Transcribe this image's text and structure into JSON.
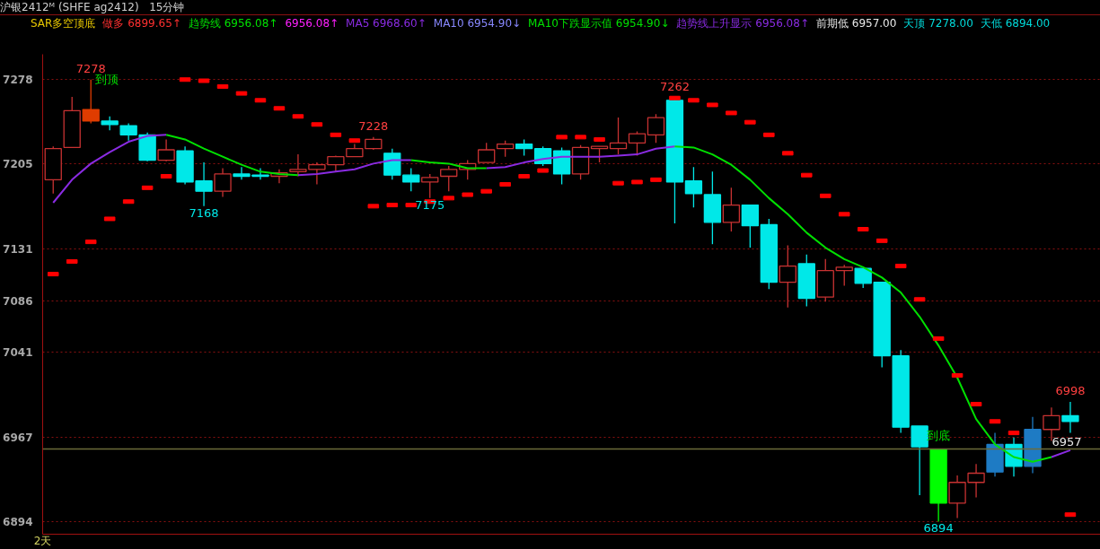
{
  "chart_data": {
    "type": "candlestick",
    "title": "沪银2412ᴹ (SHFE ag2412)",
    "subtitle": "15分钟",
    "xlabel": "2天",
    "categories": [
      null,
      null,
      null,
      null,
      null,
      null,
      null,
      null,
      null,
      null,
      null,
      null,
      null,
      null,
      null,
      null,
      null,
      null,
      null,
      null,
      null,
      null,
      null,
      null,
      null,
      null,
      null,
      null,
      null,
      null,
      null,
      null,
      null,
      null,
      null,
      null,
      null,
      null,
      null,
      null,
      null,
      null,
      null,
      null,
      null,
      null,
      null,
      null,
      null,
      null,
      null,
      null,
      null,
      null,
      null
    ],
    "ohlc": [
      [
        7191,
        7220,
        7179,
        7218
      ],
      [
        7219,
        7263,
        7219,
        7251
      ],
      [
        7252,
        7278,
        7240,
        7242
      ],
      [
        7242,
        7246,
        7234,
        7239
      ],
      [
        7238,
        7240,
        7225,
        7230
      ],
      [
        7230,
        7232,
        7207,
        7208
      ],
      [
        7208,
        7226,
        7207,
        7217
      ],
      [
        7216,
        7220,
        7187,
        7189
      ],
      [
        7190,
        7206,
        7168,
        7181
      ],
      [
        7181,
        7201,
        7176,
        7196
      ],
      [
        7196,
        7202,
        7191,
        7194
      ],
      [
        7195,
        7201,
        7191,
        7194
      ],
      [
        7194,
        7200,
        7188,
        7197
      ],
      [
        7198,
        7213,
        7194,
        7200
      ],
      [
        7200,
        7206,
        7187,
        7204
      ],
      [
        7204,
        7212,
        7198,
        7211
      ],
      [
        7211,
        7222,
        7211,
        7218
      ],
      [
        7218,
        7228,
        7217,
        7226
      ],
      [
        7214,
        7218,
        7191,
        7195
      ],
      [
        7195,
        7201,
        7181,
        7189
      ],
      [
        7189,
        7196,
        7175,
        7193
      ],
      [
        7194,
        7203,
        7181,
        7200
      ],
      [
        7200,
        7208,
        7191,
        7205
      ],
      [
        7206,
        7223,
        7206,
        7217
      ],
      [
        7218,
        7225,
        7211,
        7222
      ],
      [
        7222,
        7226,
        7212,
        7218
      ],
      [
        7218,
        7220,
        7203,
        7205
      ],
      [
        7216,
        7219,
        7187,
        7196
      ],
      [
        7196,
        7221,
        7191,
        7219
      ],
      [
        7218,
        7220,
        7206,
        7220
      ],
      [
        7218,
        7245,
        7213,
        7223
      ],
      [
        7223,
        7233,
        7212,
        7231
      ],
      [
        7230,
        7248,
        7223,
        7245
      ],
      [
        7260,
        7262,
        7153,
        7189
      ],
      [
        7190,
        7202,
        7167,
        7179
      ],
      [
        7178,
        7198,
        7135,
        7154
      ],
      [
        7154,
        7184,
        7146,
        7169
      ],
      [
        7169,
        7169,
        7132,
        7151
      ],
      [
        7152,
        7157,
        7096,
        7102
      ],
      [
        7102,
        7134,
        7080,
        7116
      ],
      [
        7118,
        7126,
        7081,
        7088
      ],
      [
        7089,
        7122,
        7085,
        7112
      ],
      [
        7112,
        7117,
        7099,
        7115
      ],
      [
        7114,
        7114,
        7097,
        7101
      ],
      [
        7102,
        7102,
        7028,
        7038
      ],
      [
        7038,
        7043,
        6971,
        6976
      ],
      [
        6977,
        6977,
        6917,
        6959
      ],
      [
        6957,
        6957,
        6894,
        6910
      ],
      [
        6910,
        6934,
        6897,
        6928
      ],
      [
        6928,
        6944,
        6915,
        6936
      ],
      [
        6961,
        6971,
        6933,
        6937
      ],
      [
        6961,
        6967,
        6933,
        6942
      ],
      [
        6974,
        6985,
        6936,
        6942
      ],
      [
        6974,
        6993,
        6964,
        6986
      ],
      [
        6986,
        6998,
        6971,
        6981
      ]
    ],
    "colors": [
      "#c83232",
      "#c83232",
      "#e03c00",
      "#00e8e8",
      "#00e8e8",
      "#00e8e8",
      "#c83232",
      "#00e8e8",
      "#00e8e8",
      "#c83232",
      "#00e8e8",
      "#00e8e8",
      "#c83232",
      "#c83232",
      "#c83232",
      "#c83232",
      "#c83232",
      "#c83232",
      "#00e8e8",
      "#00e8e8",
      "#c83232",
      "#c83232",
      "#c83232",
      "#c83232",
      "#c83232",
      "#00e8e8",
      "#00e8e8",
      "#00e8e8",
      "#c83232",
      "#c83232",
      "#c83232",
      "#c83232",
      "#c83232",
      "#00e8e8",
      "#00e8e8",
      "#00e8e8",
      "#c83232",
      "#00e8e8",
      "#00e8e8",
      "#c83232",
      "#00e8e8",
      "#c83232",
      "#c83232",
      "#00e8e8",
      "#00e8e8",
      "#00e8e8",
      "#00e8e8",
      "#00ff00",
      "#c83232",
      "#c83232",
      "#1e7bc4",
      "#00e8e8",
      "#1e7bc4",
      "#c83232",
      "#00e8e8"
    ],
    "series": [
      {
        "type": "line",
        "color": "#8a2be2",
        "values": [
          7171,
          7191,
          7205,
          7215,
          7224,
          7229,
          7230,
          null,
          null,
          null,
          null,
          null,
          null,
          7195,
          7196,
          7198,
          7200,
          7205,
          7208,
          7208,
          null,
          null,
          null,
          7201,
          7202,
          7206,
          7209,
          7211,
          7211,
          7211,
          7212,
          7213,
          7218,
          7220,
          null,
          null,
          null,
          null,
          null,
          null,
          null,
          null,
          null,
          null,
          null,
          null,
          null,
          null,
          null,
          null,
          null,
          null,
          null,
          6950,
          6956
        ]
      },
      {
        "type": "line",
        "color": "#00e000",
        "values": [
          null,
          null,
          null,
          null,
          null,
          null,
          7230,
          7226,
          7218,
          7211,
          7204,
          7198,
          7196,
          7195,
          null,
          null,
          null,
          null,
          null,
          7208,
          7206,
          7205,
          7201,
          7201,
          null,
          null,
          null,
          null,
          null,
          null,
          null,
          null,
          null,
          7220,
          7219,
          7213,
          7204,
          7191,
          7175,
          7161,
          7145,
          7132,
          7122,
          7115,
          7106,
          7093,
          7072,
          7047,
          7019,
          6983,
          6961,
          6950,
          6946,
          6950,
          null
        ]
      },
      {
        "type": "scatter",
        "color": "#ff0000",
        "values": [
          7109,
          7120,
          7137,
          7157,
          7172,
          7184,
          7194,
          7278,
          7277,
          7272,
          7266,
          7260,
          7253,
          7246,
          7239,
          7230,
          7225,
          7168,
          7169,
          7169,
          7172,
          7175,
          7178,
          7181,
          7187,
          7194,
          7199,
          7228,
          7228,
          7226,
          7188,
          7189,
          7191,
          7262,
          7260,
          7256,
          7249,
          7241,
          7230,
          7214,
          7195,
          7177,
          7161,
          7148,
          7138,
          7116,
          7087,
          7053,
          7021,
          6996,
          6981,
          6971,
          null,
          null,
          6900
        ]
      }
    ],
    "ylim": [
      6883,
      7300
    ],
    "yticks": [
      6894,
      6967,
      7041,
      7086,
      7131,
      7205,
      7278
    ],
    "grid": "y",
    "ref_lines": [
      {
        "axis": "y",
        "value": 6957,
        "label": "6957",
        "color": "#6b6b3a"
      }
    ],
    "annotations": [
      "SAR多空顶底",
      "做多 6899.65↑",
      "趋势线 6956.08↑",
      "6956.08↑",
      "MA5 6968.60↑",
      "MA10 6954.90↓",
      "MA10下跌显示值 6954.90↓",
      "趋势线上升显示 6956.08↑",
      "前期低 6957.00",
      "天顶 7278.00",
      "天低 6894.00",
      {
        "text": "7278",
        "y": 7278
      },
      "到顶",
      {
        "text": "7168",
        "y": 7168
      },
      {
        "text": "7228",
        "y": 7228
      },
      {
        "text": "7175",
        "y": 7175
      },
      {
        "text": "7262",
        "y": 7262
      },
      {
        "text": "到底",
        "y": 6957
      },
      {
        "text": "6894",
        "y": 6894
      },
      {
        "text": "6998",
        "y": 6998
      }
    ]
  }
}
